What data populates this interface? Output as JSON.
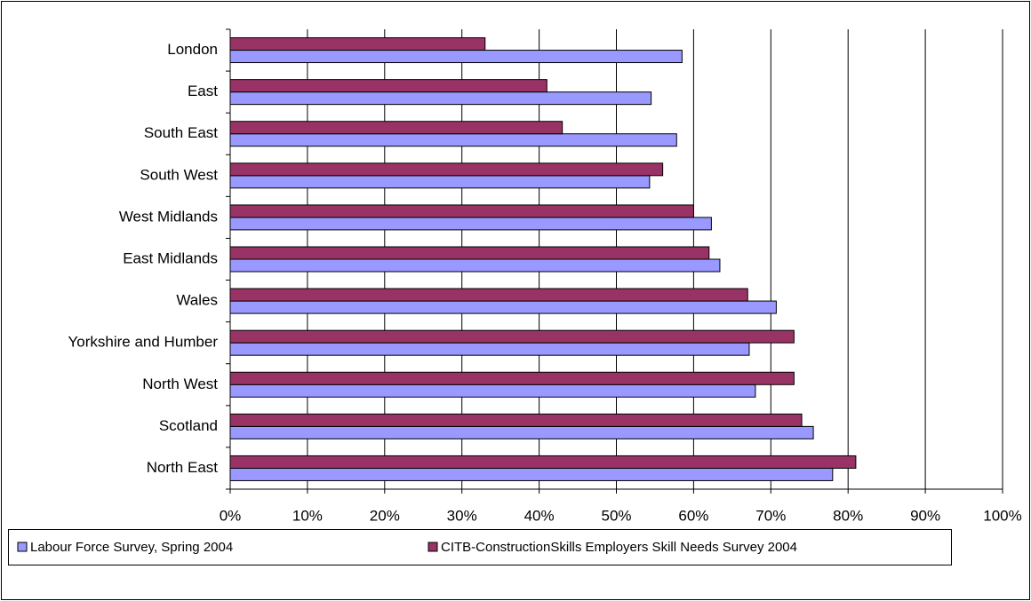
{
  "chart_data": {
    "type": "bar",
    "orientation": "horizontal",
    "categories": [
      "London",
      "East",
      "South East",
      "South West",
      "West Midlands",
      "East Midlands",
      "Wales",
      "Yorkshire and Humber",
      "North West",
      "Scotland",
      "North East"
    ],
    "series": [
      {
        "name": "Labour Force Survey, Spring 2004",
        "color": "#9999ff",
        "values": [
          58.5,
          54.5,
          57.8,
          54.3,
          62.3,
          63.4,
          70.7,
          67.2,
          68,
          75.5,
          78
        ]
      },
      {
        "name": "CITB-ConstructionSkills Employers Skill Needs Survey 2004",
        "color": "#993366",
        "values": [
          33,
          41,
          43,
          56,
          60,
          62,
          67,
          73,
          73,
          74,
          81
        ]
      }
    ],
    "xlim": [
      0,
      100
    ],
    "xticks": [
      {
        "value": 0,
        "label": "0%"
      },
      {
        "value": 10,
        "label": "10%"
      },
      {
        "value": 20,
        "label": "20%"
      },
      {
        "value": 30,
        "label": "30%"
      },
      {
        "value": 40,
        "label": "40%"
      },
      {
        "value": 50,
        "label": "50%"
      },
      {
        "value": 60,
        "label": "60%"
      },
      {
        "value": 70,
        "label": "70%"
      },
      {
        "value": 80,
        "label": "80%"
      },
      {
        "value": 90,
        "label": "90%"
      },
      {
        "value": 100,
        "label": "100%"
      }
    ],
    "grid": true,
    "legend": "bottom"
  }
}
